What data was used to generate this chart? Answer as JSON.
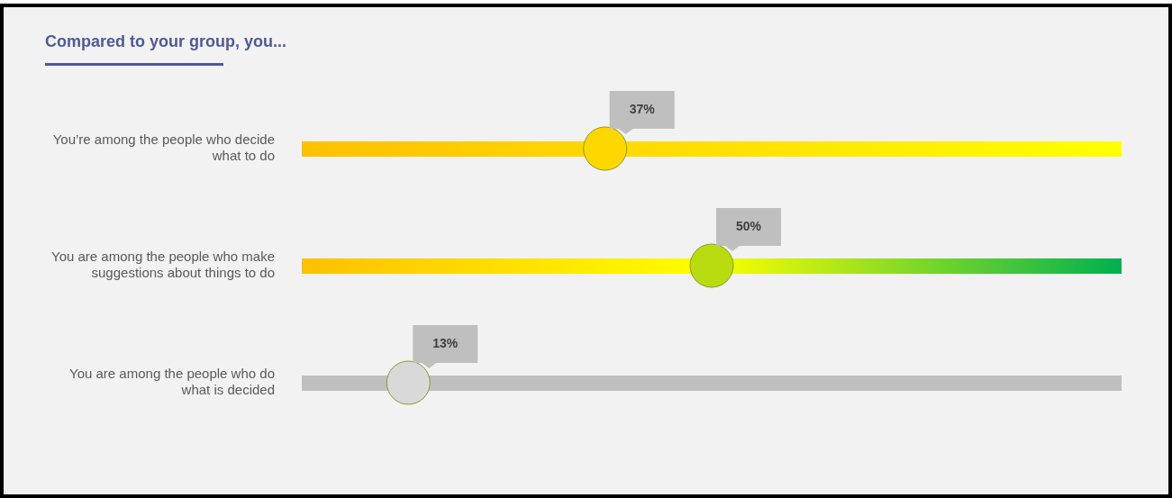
{
  "chart_data": {
    "type": "other",
    "title": "Compared to your group, you...",
    "categories": [
      "You’re among the people who decide what to do",
      "You are among the people who make suggestions about things to do",
      "You are among the people who do what is decided"
    ],
    "values": [
      37,
      50,
      13
    ],
    "value_labels": [
      "37%",
      "50%",
      "13%"
    ]
  }
}
